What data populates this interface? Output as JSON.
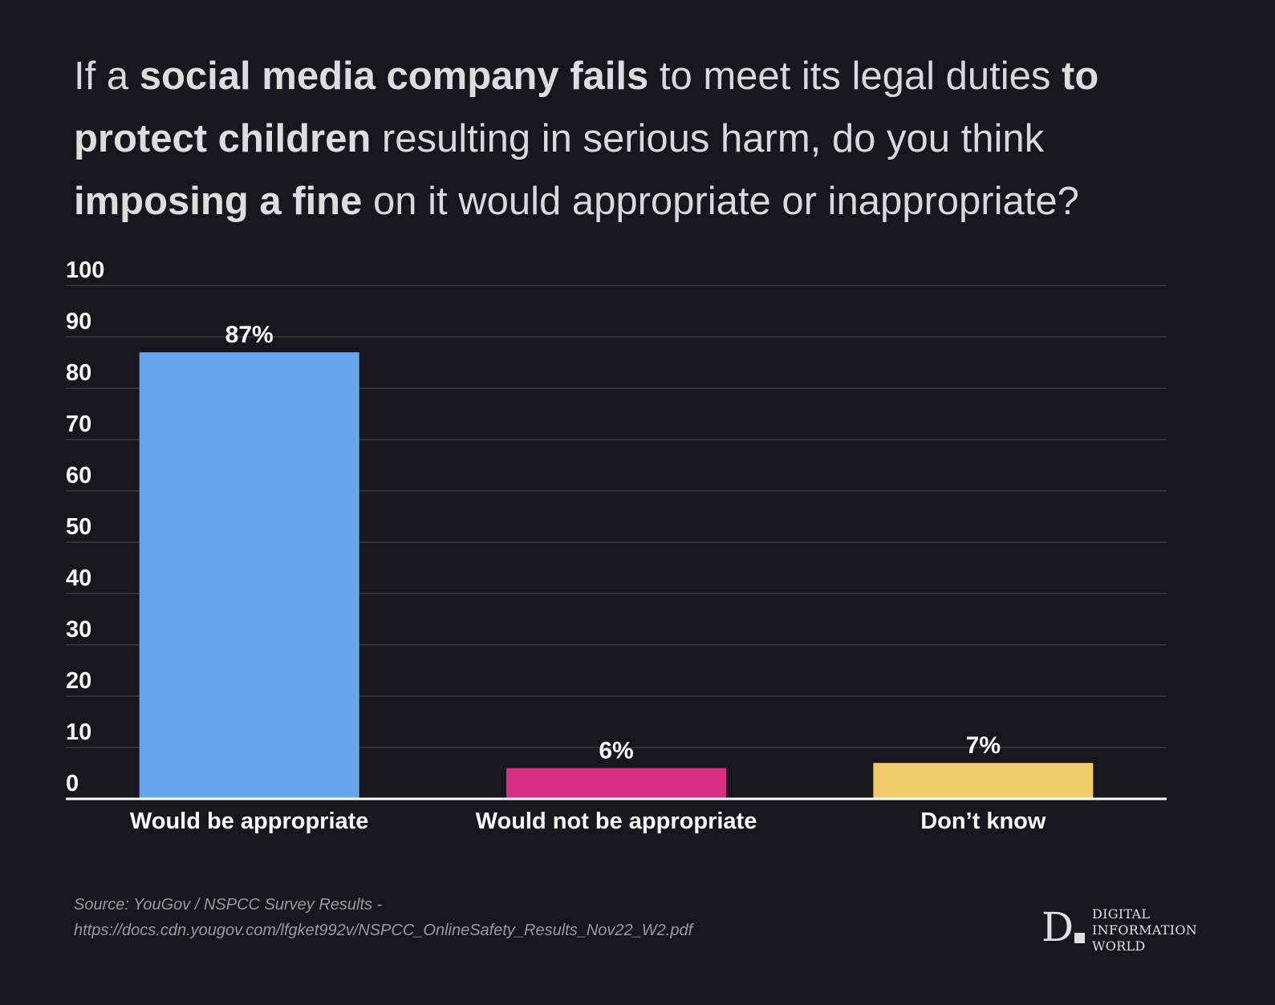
{
  "title": {
    "parts": [
      {
        "text": "If a ",
        "bold": false
      },
      {
        "text": "social media company fails",
        "bold": true
      },
      {
        "text": " to meet its legal duties ",
        "bold": false
      },
      {
        "text": "to protect children",
        "bold": true
      },
      {
        "text": " resulting in serious harm, do you think ",
        "bold": false
      },
      {
        "text": "imposing a fine",
        "bold": true
      },
      {
        "text": " on it would appropriate or inappropriate?",
        "bold": false
      }
    ]
  },
  "chart_data": {
    "type": "bar",
    "title": "If a social media company fails to meet its legal duties to protect children resulting in serious harm, do you think imposing a fine on it would appropriate or inappropriate?",
    "categories": [
      "Would be appropriate",
      "Would not be appropriate",
      "Don’t know"
    ],
    "values": [
      87,
      6,
      7
    ],
    "data_labels": [
      "87%",
      "6%",
      "7%"
    ],
    "colors": [
      "#67a5ed",
      "#d52d80",
      "#efcc6a"
    ],
    "xlabel": "",
    "ylabel": "",
    "ylim": [
      0,
      100
    ],
    "yticks": [
      0,
      10,
      20,
      30,
      40,
      50,
      60,
      70,
      80,
      90,
      100
    ],
    "grid": true,
    "legend": "none"
  },
  "source": {
    "line1": "Source: YouGov / NSPCC Survey Results -",
    "line2": "https://docs.cdn.yougov.com/lfgket992v/NSPCC_OnlineSafety_Results_Nov22_W2.pdf"
  },
  "logo": {
    "letter": "D",
    "lines": [
      "DIGITAL",
      "INFORMATION",
      "WORLD"
    ]
  }
}
